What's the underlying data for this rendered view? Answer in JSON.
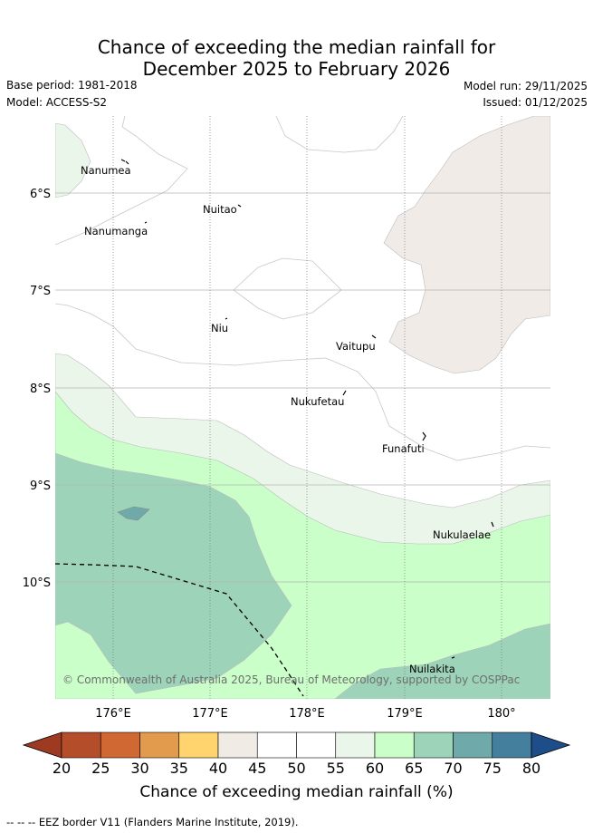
{
  "title": {
    "line1": "Chance of exceeding the median rainfall for",
    "line2": "December 2025 to February 2026"
  },
  "meta": {
    "base_period": "Base period: 1981-2018",
    "model": "Model: ACCESS-S2",
    "model_run": "Model run: 29/11/2025",
    "issued": "Issued: 01/12/2025"
  },
  "map": {
    "lat_labels": [
      "6°S",
      "7°S",
      "8°S",
      "9°S",
      "10°S"
    ],
    "lon_labels": [
      "176°E",
      "177°E",
      "178°E",
      "179°E",
      "180°"
    ],
    "places": [
      "Nanumea",
      "Nuitao",
      "Nanumanga",
      "Niu",
      "Vaitupu",
      "Nukufetau",
      "Funafuti",
      "Nukulaelae",
      "Nuilakita"
    ],
    "copyright": "© Commonwealth of Australia 2025, Bureau of Meteorology, supported by COSPPac"
  },
  "colorbar": {
    "ticks": [
      "20",
      "25",
      "30",
      "35",
      "40",
      "45",
      "50",
      "55",
      "60",
      "65",
      "70",
      "75",
      "80"
    ],
    "colors": [
      "#b34d2a",
      "#cf6833",
      "#e29a4d",
      "#ffd36e",
      "#f1ebe6",
      "#ffffff",
      "#ffffff",
      "#eaf6ea",
      "#caffca",
      "#9dd3b9",
      "#70a9a9",
      "#447f9e"
    ],
    "low_extend_color": "#9e3a22",
    "high_extend_color": "#1d4e8a",
    "label": "Chance of exceeding median rainfall (%)"
  },
  "legend": {
    "eez": "--  --  -- EEZ border V11 (Flanders Marine Institute, 2019)."
  }
}
